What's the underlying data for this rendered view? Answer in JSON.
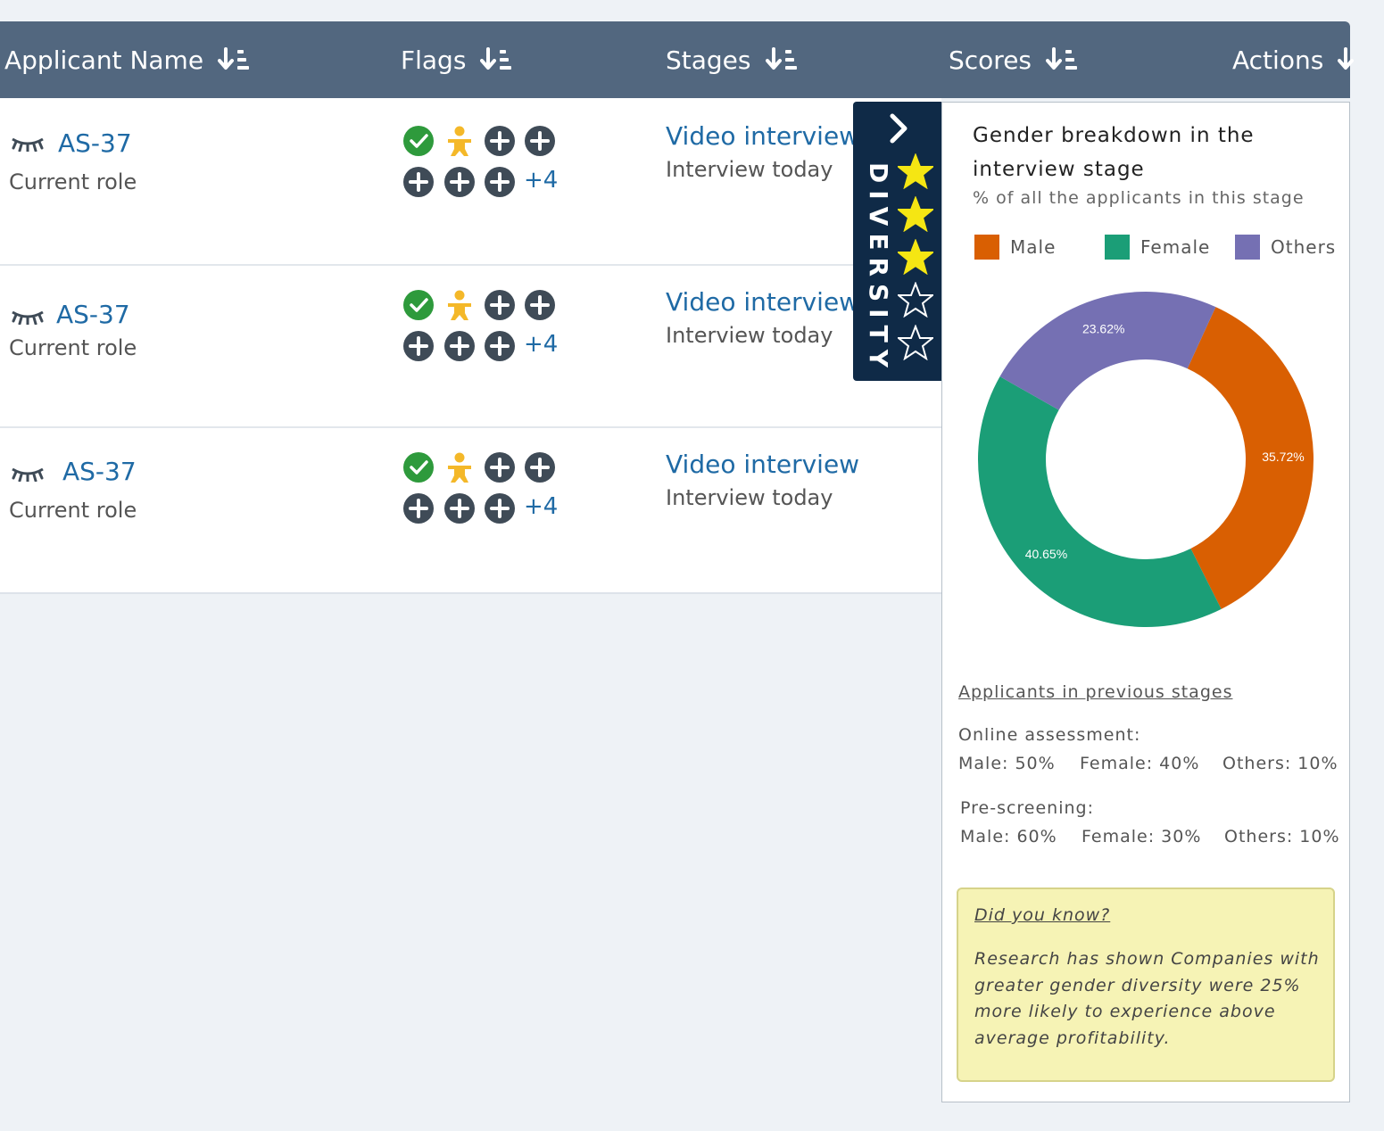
{
  "table": {
    "columns": [
      {
        "label": "Applicant Name"
      },
      {
        "label": "Flags"
      },
      {
        "label": "Stages"
      },
      {
        "label": "Scores"
      },
      {
        "label": "Actions"
      }
    ],
    "rows": [
      {
        "applicant_id": "AS-37",
        "role": "Current role",
        "flags_more": "+4",
        "stage": "Video interview",
        "stage_status": "Interview today"
      },
      {
        "applicant_id": "AS-37",
        "role": "Current role",
        "flags_more": "+4",
        "stage": "Video interview",
        "stage_status": "Interview today"
      },
      {
        "applicant_id": "AS-37",
        "role": "Current role",
        "flags_more": "+4",
        "stage": "Video interview",
        "stage_status": "Interview today"
      }
    ],
    "flag_icons": [
      "check-circle-icon",
      "person-icon",
      "plus-circle-icon",
      "plus-circle-icon",
      "plus-circle-icon",
      "plus-circle-icon",
      "plus-circle-icon"
    ]
  },
  "diversity_tab": {
    "label": "DIVERSITY",
    "rating": 3,
    "max_rating": 5,
    "star_color": "#f5e613"
  },
  "panel": {
    "title": "Gender breakdown in the interview stage",
    "subtitle": "% of all the applicants in this stage",
    "previous_link": "Applicants in previous stages",
    "online": {
      "heading": "Online assessment:",
      "male": "Male: 50%",
      "female": "Female: 40%",
      "others": "Others: 10%"
    },
    "prescreen": {
      "heading": "Pre-screening:",
      "male": "Male: 60%",
      "female": "Female: 30%",
      "others": "Others: 10%"
    },
    "tip": {
      "heading": "Did you know?",
      "body": "Research has shown Companies with greater gender diversity were 25% more likely to experience above average profitability."
    }
  },
  "chart_data": {
    "type": "pie",
    "series": [
      {
        "name": "Male",
        "value": 35.72,
        "label": "35.72%",
        "color": "#d95f02"
      },
      {
        "name": "Female",
        "value": 40.65,
        "label": "40.65%",
        "color": "#1b9e77"
      },
      {
        "name": "Others",
        "value": 23.62,
        "label": "23.62%",
        "color": "#7570b3"
      }
    ]
  }
}
